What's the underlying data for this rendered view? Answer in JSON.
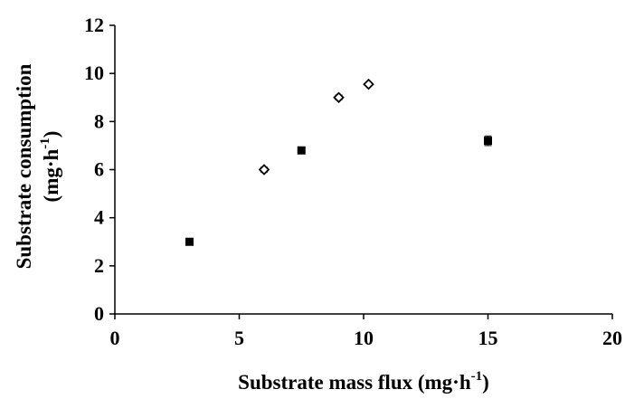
{
  "chart_data": {
    "type": "scatter",
    "xlabel_main": "Substrate mass flux (mg·h",
    "xlabel_sup": "-1",
    "xlabel_end": ")",
    "ylabel_line1": "Substrate consumption",
    "ylabel_line2_main": "(mg·h",
    "ylabel_line2_sup": "-1",
    "ylabel_line2_end": ")",
    "xlim": [
      0,
      20
    ],
    "ylim": [
      0,
      12
    ],
    "xticks": [
      "0",
      "5",
      "10",
      "15",
      "20"
    ],
    "yticks": [
      "0",
      "2",
      "4",
      "6",
      "8",
      "10",
      "12"
    ],
    "grid": false,
    "legend": false,
    "series": [
      {
        "marker": "filled-square",
        "color": "#000000",
        "points": [
          {
            "x": 3.0,
            "y": 3.0,
            "err": 0.1
          },
          {
            "x": 7.5,
            "y": 6.8,
            "err": 0.1
          },
          {
            "x": 15.0,
            "y": 7.2,
            "err": 0.2
          }
        ]
      },
      {
        "marker": "open-diamond",
        "color": "#000000",
        "points": [
          {
            "x": 6.0,
            "y": 6.0,
            "err": 0.1
          },
          {
            "x": 9.0,
            "y": 9.0,
            "err": 0.1
          },
          {
            "x": 10.2,
            "y": 9.55,
            "err": 0.0
          }
        ]
      }
    ]
  }
}
